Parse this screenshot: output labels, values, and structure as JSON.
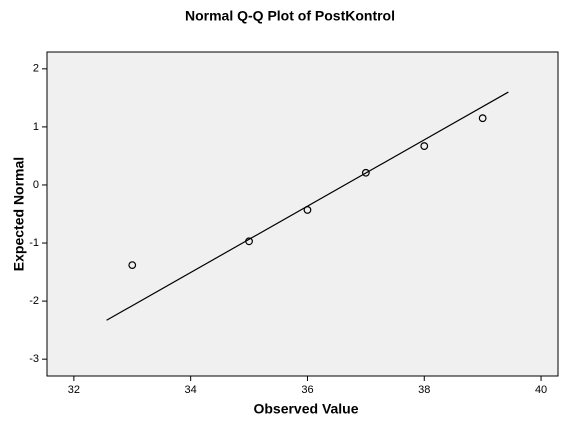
{
  "chart_data": {
    "type": "scatter",
    "title": "Normal Q-Q Plot of PostKontrol",
    "x_label": "Observed Value",
    "y_label": "Expected Normal",
    "x": [
      33,
      35,
      36,
      37,
      38,
      39
    ],
    "values": [
      -1.38,
      -0.97,
      -0.43,
      0.21,
      0.67,
      1.15
    ],
    "reference_line": {
      "x": [
        32.56,
        39.44
      ],
      "y": [
        -2.33,
        1.6
      ]
    },
    "xlim": [
      31.54,
      40.29
    ],
    "ylim": [
      -3.29,
      2.29
    ],
    "xticks": [
      32,
      34,
      36,
      38,
      40
    ],
    "yticks": [
      -3,
      -2,
      -1,
      0,
      1,
      2
    ],
    "color": "#000000",
    "background": "#f0f0f0"
  }
}
